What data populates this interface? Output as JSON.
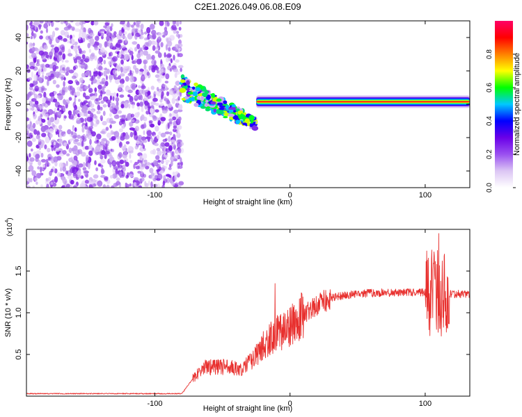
{
  "chart_data": [
    {
      "type": "heatmap",
      "title": "C2E1.2026.049.06.08.E09",
      "xlabel": "Height of straight line (km)",
      "ylabel": "Frequency (Hz)",
      "xlim": [
        -195,
        133
      ],
      "ylim": [
        -50,
        50
      ],
      "x_ticks": [
        -100,
        0,
        100
      ],
      "y_ticks": [
        -40,
        -20,
        0,
        20,
        40
      ],
      "colorbar": {
        "label": "Normalized spectral amplitude",
        "range": [
          0.0,
          1.0
        ],
        "ticks": [
          "0.0",
          "0.2",
          "0.4",
          "0.6",
          "0.8"
        ],
        "colors": [
          "#ffffff",
          "#dcc6f4",
          "#9a50f0",
          "#6a00e8",
          "#0000ff",
          "#00c8ff",
          "#00ff00",
          "#ffff00",
          "#ff8000",
          "#ff0000",
          "#ff0066"
        ]
      },
      "regions": [
        {
          "name": "noise scatter",
          "x_range": [
            -195,
            -80
          ],
          "y_range": [
            -50,
            50
          ],
          "amplitude": 0.05
        },
        {
          "name": "chirp band",
          "x_range": [
            -80,
            -25
          ],
          "start_freq": 10,
          "end_freq": -12,
          "amplitude": 0.45
        },
        {
          "name": "flat band",
          "x_range": [
            -25,
            133
          ],
          "center_freq": 1.5,
          "amplitude": 1.0
        }
      ]
    },
    {
      "type": "line",
      "xlabel": "Height of straight line (km)",
      "ylabel": "SNR (10 * v/v)",
      "y_multiplier": "x10^4",
      "y_multiplier_base": "(x10",
      "y_multiplier_exp": "4",
      "xlim": [
        -195,
        133
      ],
      "ylim": [
        0,
        2.0
      ],
      "x_ticks": [
        -100,
        0,
        100
      ],
      "y_ticks": [
        "0.5",
        "1.0",
        "1.5"
      ],
      "color": "#e8302e",
      "envelope": [
        {
          "x": -195,
          "y": 0.03
        },
        {
          "x": -80,
          "y": 0.03
        },
        {
          "x": -70,
          "y": 0.25
        },
        {
          "x": -63,
          "y": 0.35
        },
        {
          "x": -50,
          "y": 0.35
        },
        {
          "x": -35,
          "y": 0.33
        },
        {
          "x": -25,
          "y": 0.5
        },
        {
          "x": -15,
          "y": 0.7
        },
        {
          "x": 0,
          "y": 0.85
        },
        {
          "x": 15,
          "y": 1.05
        },
        {
          "x": 30,
          "y": 1.18
        },
        {
          "x": 50,
          "y": 1.23
        },
        {
          "x": 70,
          "y": 1.24
        },
        {
          "x": 90,
          "y": 1.25
        },
        {
          "x": 133,
          "y": 1.22
        }
      ],
      "peaks": [
        {
          "x": 110,
          "y": 1.95
        },
        {
          "x": -11,
          "y": 1.35
        },
        {
          "x": 112,
          "y": 0.72
        }
      ]
    }
  ]
}
